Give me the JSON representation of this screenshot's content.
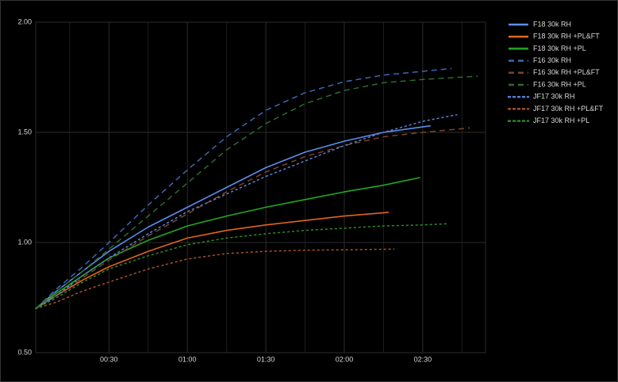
{
  "chart_data": {
    "type": "line",
    "xlim": [
      2,
      174
    ],
    "ylim": [
      0.5,
      2.0
    ],
    "xticks": [
      {
        "value": 30,
        "label": "00:30"
      },
      {
        "value": 60,
        "label": "01:00"
      },
      {
        "value": 90,
        "label": "01:30"
      },
      {
        "value": 120,
        "label": "02:00"
      },
      {
        "value": 150,
        "label": "02:30"
      }
    ],
    "yticks": [
      {
        "value": 0.5,
        "label": "0.50"
      },
      {
        "value": 1.0,
        "label": "1.00"
      },
      {
        "value": 1.5,
        "label": "1.50"
      },
      {
        "value": 2.0,
        "label": "2.00"
      }
    ],
    "grid": true,
    "legend": "right",
    "series": [
      {
        "name": "F18 30k RH",
        "color": "#5b8def",
        "style": "solid",
        "x": [
          2,
          10,
          20,
          30,
          45,
          60,
          75,
          90,
          105,
          120,
          135,
          150,
          153
        ],
        "values": [
          0.7,
          0.78,
          0.87,
          0.96,
          1.07,
          1.16,
          1.25,
          1.34,
          1.41,
          1.46,
          1.5,
          1.525,
          1.53
        ]
      },
      {
        "name": "F18 30k RH +PL&FT",
        "color": "#e0641c",
        "style": "solid",
        "x": [
          2,
          10,
          20,
          30,
          45,
          60,
          75,
          90,
          105,
          120,
          137
        ],
        "values": [
          0.7,
          0.76,
          0.83,
          0.89,
          0.96,
          1.02,
          1.055,
          1.08,
          1.1,
          1.12,
          1.137
        ]
      },
      {
        "name": "F18 30k RH +PL",
        "color": "#22a822",
        "style": "solid",
        "x": [
          2,
          10,
          20,
          30,
          45,
          60,
          75,
          90,
          105,
          120,
          135,
          149
        ],
        "values": [
          0.7,
          0.77,
          0.85,
          0.93,
          1.01,
          1.075,
          1.12,
          1.16,
          1.195,
          1.23,
          1.26,
          1.295
        ]
      },
      {
        "name": "F16 30k RH",
        "color": "#3f66b0",
        "style": "dashed",
        "x": [
          2,
          10,
          20,
          30,
          45,
          60,
          75,
          90,
          105,
          120,
          135,
          150,
          161
        ],
        "values": [
          0.7,
          0.79,
          0.89,
          1.0,
          1.17,
          1.33,
          1.48,
          1.6,
          1.68,
          1.73,
          1.76,
          1.777,
          1.79
        ]
      },
      {
        "name": "F16 30k RH +PL&FT",
        "color": "#7a4526",
        "style": "dashed",
        "x": [
          2,
          10,
          20,
          30,
          45,
          60,
          75,
          90,
          105,
          120,
          135,
          150,
          168
        ],
        "values": [
          0.7,
          0.76,
          0.84,
          0.92,
          1.03,
          1.13,
          1.23,
          1.32,
          1.39,
          1.44,
          1.48,
          1.5,
          1.52
        ]
      },
      {
        "name": "F16 30k RH +PL",
        "color": "#2e6a2e",
        "style": "dashed",
        "x": [
          2,
          10,
          20,
          30,
          45,
          60,
          75,
          90,
          105,
          120,
          135,
          150,
          171
        ],
        "values": [
          0.7,
          0.78,
          0.87,
          0.97,
          1.12,
          1.27,
          1.42,
          1.54,
          1.63,
          1.69,
          1.725,
          1.74,
          1.755
        ]
      },
      {
        "name": "JF17 30k RH",
        "color": "#5a7fd8",
        "style": "dotted",
        "x": [
          2,
          10,
          20,
          30,
          45,
          60,
          75,
          90,
          105,
          120,
          135,
          150,
          163
        ],
        "values": [
          0.7,
          0.76,
          0.85,
          0.93,
          1.04,
          1.14,
          1.22,
          1.3,
          1.37,
          1.44,
          1.5,
          1.55,
          1.58
        ]
      },
      {
        "name": "JF17 30k RH +PL&FT",
        "color": "#a4502c",
        "style": "dotted",
        "x": [
          2,
          10,
          20,
          30,
          45,
          60,
          75,
          90,
          105,
          120,
          139
        ],
        "values": [
          0.7,
          0.73,
          0.78,
          0.82,
          0.88,
          0.925,
          0.95,
          0.96,
          0.965,
          0.967,
          0.97
        ]
      },
      {
        "name": "JF17 30k RH +PL",
        "color": "#2a8a2a",
        "style": "dotted",
        "x": [
          2,
          10,
          20,
          30,
          45,
          60,
          75,
          90,
          105,
          120,
          135,
          150,
          159
        ],
        "values": [
          0.7,
          0.75,
          0.82,
          0.88,
          0.94,
          0.99,
          1.02,
          1.04,
          1.055,
          1.065,
          1.075,
          1.08,
          1.085
        ]
      }
    ]
  }
}
